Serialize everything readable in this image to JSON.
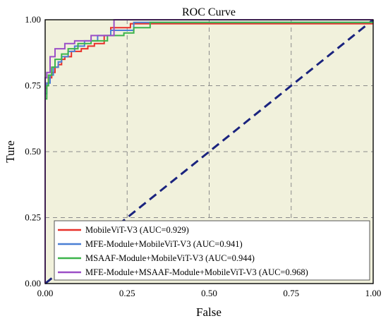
{
  "chart_data": {
    "type": "line",
    "title": "ROC Curve",
    "xlabel": "False",
    "ylabel": "Ture",
    "xlim": [
      0,
      1
    ],
    "ylim": [
      0,
      1
    ],
    "xticks": [
      0,
      0.25,
      0.5,
      0.75,
      1
    ],
    "yticks": [
      0,
      0.25,
      0.5,
      0.75,
      1
    ],
    "xtick_labels": [
      "0.00",
      "0.25",
      "0.50",
      "0.75",
      "1.00"
    ],
    "ytick_labels": [
      "0.00",
      "0.25",
      "0.50",
      "0.75",
      "1.00"
    ],
    "grid": true,
    "legend_position": "bottom-right",
    "colors": {
      "plot_background": "#f1f1dc",
      "diagonal": "#1a237e",
      "grid": "#8a8a8a"
    },
    "diagonal": {
      "x": [
        0,
        1
      ],
      "y": [
        0,
        1
      ],
      "style": "dashed"
    },
    "series": [
      {
        "name": "MobileViT-V3 (AUC=0.929)",
        "color": "#e8302a",
        "x": [
          0,
          0,
          0.005,
          0.005,
          0.01,
          0.01,
          0.02,
          0.02,
          0.03,
          0.03,
          0.04,
          0.04,
          0.05,
          0.05,
          0.06,
          0.06,
          0.08,
          0.08,
          0.11,
          0.11,
          0.13,
          0.13,
          0.15,
          0.15,
          0.18,
          0.18,
          0.2,
          0.2,
          0.26,
          0.26,
          1.0
        ],
        "y": [
          0,
          0.74,
          0.74,
          0.76,
          0.76,
          0.78,
          0.78,
          0.8,
          0.8,
          0.82,
          0.82,
          0.83,
          0.83,
          0.85,
          0.85,
          0.86,
          0.86,
          0.88,
          0.88,
          0.89,
          0.89,
          0.9,
          0.9,
          0.91,
          0.91,
          0.94,
          0.94,
          0.97,
          0.97,
          0.985,
          0.985
        ]
      },
      {
        "name": "MFE-Module+MobileViT-V3 (AUC=0.941)",
        "color": "#4a7fd4",
        "x": [
          0,
          0,
          0.005,
          0.005,
          0.015,
          0.015,
          0.025,
          0.025,
          0.04,
          0.04,
          0.05,
          0.05,
          0.07,
          0.07,
          0.09,
          0.09,
          0.12,
          0.12,
          0.16,
          0.16,
          0.2,
          0.2,
          0.27,
          0.27,
          1.0
        ],
        "y": [
          0,
          0.72,
          0.72,
          0.76,
          0.76,
          0.79,
          0.79,
          0.82,
          0.82,
          0.84,
          0.84,
          0.86,
          0.86,
          0.88,
          0.88,
          0.9,
          0.9,
          0.92,
          0.92,
          0.94,
          0.94,
          0.96,
          0.96,
          0.99,
          0.99
        ]
      },
      {
        "name": "MSAAF-Module+MobileViT-V3 (AUC=0.944)",
        "color": "#3cb44b",
        "x": [
          0,
          0,
          0.005,
          0.005,
          0.01,
          0.01,
          0.02,
          0.02,
          0.03,
          0.03,
          0.05,
          0.05,
          0.07,
          0.07,
          0.1,
          0.1,
          0.14,
          0.14,
          0.19,
          0.19,
          0.24,
          0.24,
          0.27,
          0.27,
          0.32,
          0.32,
          1.0
        ],
        "y": [
          0,
          0.7,
          0.7,
          0.75,
          0.75,
          0.79,
          0.79,
          0.82,
          0.82,
          0.85,
          0.85,
          0.87,
          0.87,
          0.89,
          0.89,
          0.91,
          0.91,
          0.92,
          0.92,
          0.94,
          0.94,
          0.95,
          0.95,
          0.97,
          0.97,
          0.99,
          0.99
        ]
      },
      {
        "name": "MFE-Module+MSAAF-Module+MobileViT-V3 (AUC=0.968)",
        "color": "#9b4fc7",
        "x": [
          0,
          0,
          0.005,
          0.005,
          0.015,
          0.015,
          0.03,
          0.03,
          0.06,
          0.06,
          0.09,
          0.09,
          0.14,
          0.14,
          0.21,
          0.21,
          1.0
        ],
        "y": [
          0,
          0.78,
          0.78,
          0.8,
          0.8,
          0.86,
          0.86,
          0.89,
          0.89,
          0.91,
          0.91,
          0.92,
          0.92,
          0.94,
          0.94,
          1.0,
          1.0
        ]
      }
    ]
  }
}
